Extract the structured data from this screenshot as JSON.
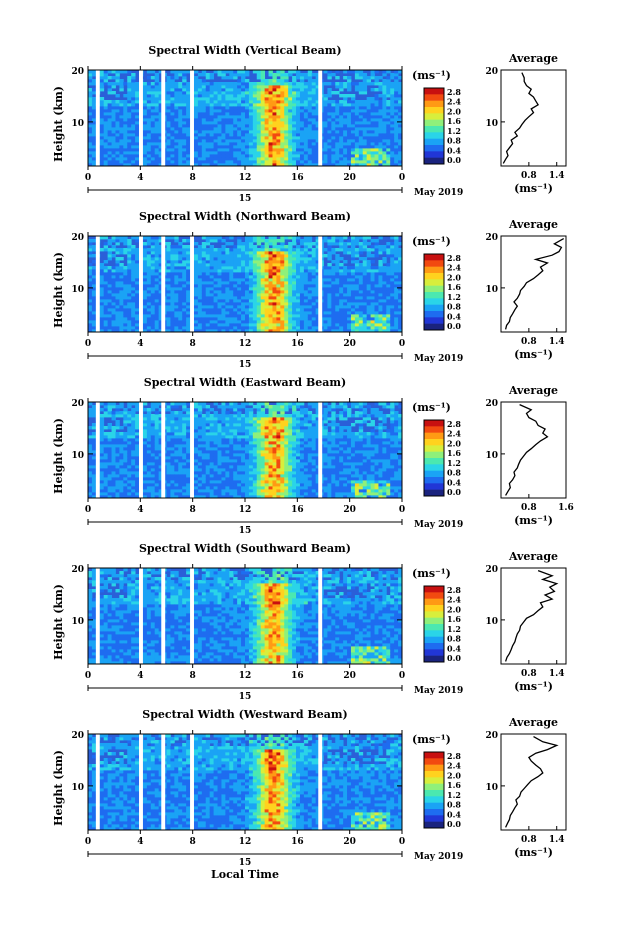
{
  "date_label": "May 2019",
  "day_label": "15",
  "xaxis_title": "Local Time",
  "ylabel": "Height (km)",
  "unit_label": "(ms⁻¹)",
  "avg_title": "Average",
  "avg_xlabel": "(ms⁻¹)",
  "colorbar_ticks": [
    "0.0",
    "0.4",
    "0.8",
    "1.2",
    "1.6",
    "2.0",
    "2.4",
    "2.8"
  ],
  "colorbar_colors": [
    "#1a237e",
    "#2136d6",
    "#1e6cf0",
    "#1aa3f5",
    "#2ad4e8",
    "#4be8b0",
    "#8ff07a",
    "#d8ee3c",
    "#ffd21e",
    "#ff9a14",
    "#f24a10",
    "#c81010"
  ],
  "time_ticks": [
    "0",
    "4",
    "8",
    "12",
    "16",
    "20",
    "0"
  ],
  "height_ticks": [
    "20",
    "10"
  ],
  "chart_data": [
    {
      "type": "heatmap",
      "title": "Spectral Width (Vertical Beam)",
      "xlabel": "Local Time",
      "ylabel": "Height (km)",
      "xlim": [
        0,
        24
      ],
      "ylim": [
        1.5,
        20
      ],
      "xticks": [
        0,
        4,
        8,
        12,
        16,
        20,
        24
      ],
      "colorbar_range": [
        0.0,
        2.8
      ],
      "data_gaps_hours": [
        [
          0.6,
          0.9
        ],
        [
          3.9,
          4.2
        ],
        [
          5.6,
          5.9
        ],
        [
          7.8,
          8.1
        ],
        [
          17.6,
          17.9
        ]
      ],
      "average_profile": {
        "xlim": [
          0.2,
          1.6
        ],
        "xticks": [
          "0.8",
          "1.4"
        ],
        "ylim": [
          1.5,
          20
        ],
        "yticks": [
          "20",
          "10"
        ],
        "x": [
          0.25,
          0.3,
          0.35,
          0.32,
          0.38,
          0.45,
          0.42,
          0.55,
          0.5,
          0.6,
          0.65,
          0.72,
          0.8,
          0.9,
          0.85,
          1.0,
          0.95,
          0.9,
          0.8,
          0.85,
          0.75,
          0.7,
          0.7,
          0.65
        ],
        "heights": [
          2,
          2.8,
          3.5,
          4.3,
          5,
          5.8,
          6.5,
          7.3,
          8,
          8.8,
          9.5,
          10.3,
          11,
          11.8,
          12.5,
          13.3,
          14,
          14.8,
          15.5,
          16.3,
          17,
          17.8,
          18.5,
          19.5
        ]
      }
    },
    {
      "type": "heatmap",
      "title": "Spectral Width (Northward Beam)",
      "xlabel": "Local Time",
      "ylabel": "Height (km)",
      "xlim": [
        0,
        24
      ],
      "ylim": [
        1.5,
        20
      ],
      "xticks": [
        0,
        4,
        8,
        12,
        16,
        20,
        24
      ],
      "colorbar_range": [
        0.0,
        2.8
      ],
      "data_gaps_hours": [
        [
          0.6,
          0.9
        ],
        [
          3.9,
          4.2
        ],
        [
          5.6,
          5.9
        ],
        [
          7.8,
          8.1
        ],
        [
          17.6,
          17.9
        ]
      ],
      "average_profile": {
        "xlim": [
          0.2,
          1.6
        ],
        "xticks": [
          "0.8",
          "1.4"
        ],
        "ylim": [
          1.5,
          20
        ],
        "yticks": [
          "20",
          "10"
        ],
        "x": [
          0.3,
          0.32,
          0.38,
          0.4,
          0.45,
          0.5,
          0.55,
          0.48,
          0.55,
          0.6,
          0.62,
          0.7,
          0.75,
          0.9,
          1.0,
          1.1,
          1.05,
          1.2,
          0.95,
          1.3,
          1.45,
          1.5,
          1.35,
          1.55
        ],
        "heights": [
          2,
          2.8,
          3.5,
          4.3,
          5,
          5.8,
          6.5,
          7.3,
          8,
          8.8,
          9.5,
          10.3,
          11,
          11.8,
          12.5,
          13.3,
          14,
          14.8,
          15.5,
          16.3,
          17,
          17.8,
          18.5,
          19.5
        ]
      }
    },
    {
      "type": "heatmap",
      "title": "Spectral Width (Eastward Beam)",
      "xlabel": "Local Time",
      "ylabel": "Height (km)",
      "xlim": [
        0,
        24
      ],
      "ylim": [
        1.5,
        20
      ],
      "xticks": [
        0,
        4,
        8,
        12,
        16,
        20,
        24
      ],
      "colorbar_range": [
        0.0,
        2.8
      ],
      "data_gaps_hours": [
        [
          0.6,
          0.9
        ],
        [
          3.9,
          4.2
        ],
        [
          5.6,
          5.9
        ],
        [
          7.8,
          8.1
        ],
        [
          17.6,
          17.9
        ]
      ],
      "average_profile": {
        "xlim": [
          0.2,
          1.6
        ],
        "xticks": [
          "0.8",
          "1.6"
        ],
        "ylim": [
          1.5,
          20
        ],
        "yticks": [
          "20",
          "10"
        ],
        "x": [
          0.3,
          0.35,
          0.4,
          0.38,
          0.45,
          0.5,
          0.48,
          0.55,
          0.58,
          0.62,
          0.68,
          0.75,
          0.85,
          0.95,
          1.05,
          1.2,
          1.1,
          1.15,
          1.0,
          0.95,
          0.8,
          0.75,
          0.85,
          0.6
        ],
        "heights": [
          2,
          2.8,
          3.5,
          4.3,
          5,
          5.8,
          6.5,
          7.3,
          8,
          8.8,
          9.5,
          10.3,
          11,
          11.8,
          12.5,
          13.3,
          14,
          14.8,
          15.5,
          16.3,
          17,
          17.8,
          18.5,
          19.5
        ]
      }
    },
    {
      "type": "heatmap",
      "title": "Spectral Width (Southward Beam)",
      "xlabel": "Local Time",
      "ylabel": "Height (km)",
      "xlim": [
        0,
        24
      ],
      "ylim": [
        1.5,
        20
      ],
      "xticks": [
        0,
        4,
        8,
        12,
        16,
        20,
        24
      ],
      "colorbar_range": [
        0.0,
        2.8
      ],
      "data_gaps_hours": [
        [
          0.6,
          0.9
        ],
        [
          3.9,
          4.2
        ],
        [
          5.6,
          5.9
        ],
        [
          7.8,
          8.1
        ],
        [
          17.6,
          17.9
        ]
      ],
      "average_profile": {
        "xlim": [
          0.2,
          1.6
        ],
        "xticks": [
          "0.8",
          "1.4"
        ],
        "ylim": [
          1.5,
          20
        ],
        "yticks": [
          "20",
          "10"
        ],
        "x": [
          0.3,
          0.33,
          0.38,
          0.42,
          0.45,
          0.5,
          0.52,
          0.55,
          0.6,
          0.62,
          0.68,
          0.75,
          0.9,
          1.0,
          1.1,
          1.05,
          1.3,
          1.15,
          1.35,
          1.25,
          1.4,
          1.1,
          1.3,
          1.0
        ],
        "heights": [
          2,
          2.8,
          3.5,
          4.3,
          5,
          5.8,
          6.5,
          7.3,
          8,
          8.8,
          9.5,
          10.3,
          11,
          11.8,
          12.5,
          13.3,
          14,
          14.8,
          15.5,
          16.3,
          17,
          17.8,
          18.5,
          19.5
        ]
      }
    },
    {
      "type": "heatmap",
      "title": "Spectral Width (Westward Beam)",
      "xlabel": "Local Time",
      "ylabel": "Height (km)",
      "xlim": [
        0,
        24
      ],
      "ylim": [
        1.5,
        20
      ],
      "xticks": [
        0,
        4,
        8,
        12,
        16,
        20,
        24
      ],
      "colorbar_range": [
        0.0,
        2.8
      ],
      "data_gaps_hours": [
        [
          0.6,
          0.9
        ],
        [
          3.9,
          4.2
        ],
        [
          5.6,
          5.9
        ],
        [
          7.8,
          8.1
        ],
        [
          17.6,
          17.9
        ]
      ],
      "average_profile": {
        "xlim": [
          0.2,
          1.6
        ],
        "xticks": [
          "0.8",
          "1.4"
        ],
        "ylim": [
          1.5,
          20
        ],
        "yticks": [
          "20",
          "10"
        ],
        "x": [
          0.3,
          0.34,
          0.38,
          0.4,
          0.45,
          0.5,
          0.55,
          0.52,
          0.6,
          0.63,
          0.7,
          0.78,
          0.85,
          1.0,
          1.1,
          1.05,
          0.95,
          0.85,
          0.8,
          0.95,
          1.2,
          1.4,
          1.1,
          0.9
        ],
        "heights": [
          2,
          2.8,
          3.5,
          4.3,
          5,
          5.8,
          6.5,
          7.3,
          8,
          8.8,
          9.5,
          10.3,
          11,
          11.8,
          12.5,
          13.3,
          14,
          14.8,
          15.5,
          16.3,
          17,
          17.8,
          18.5,
          19.5
        ]
      }
    }
  ]
}
